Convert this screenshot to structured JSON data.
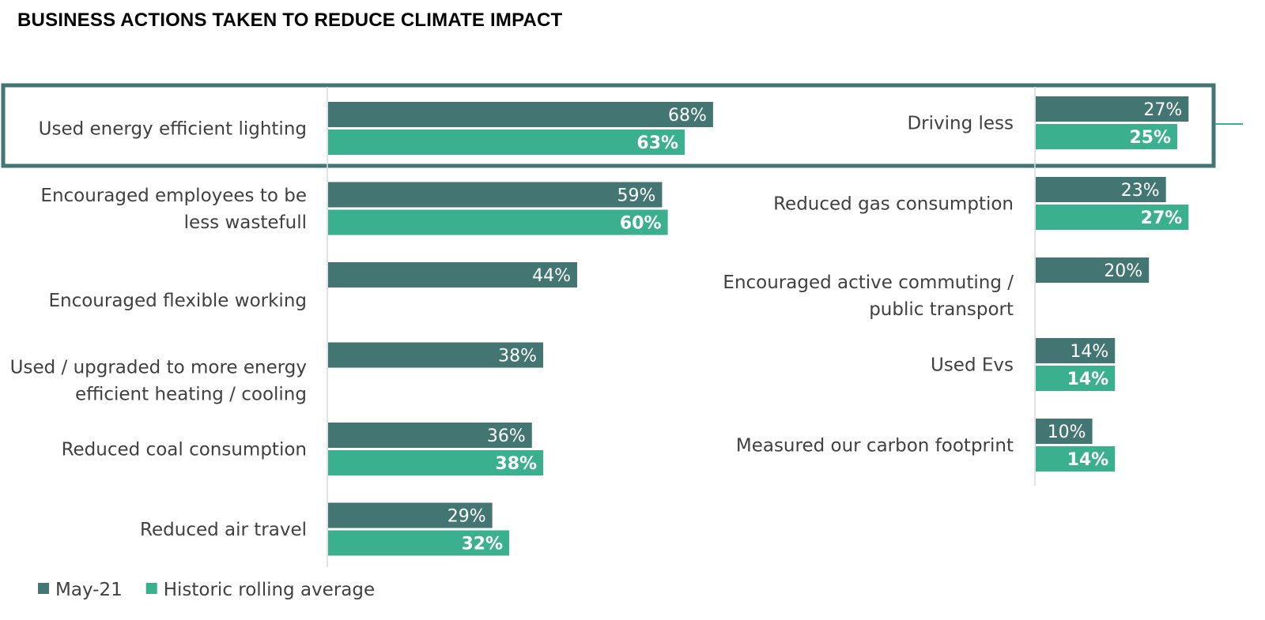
{
  "title": "BUSINESS ACTIONS TAKEN TO REDUCE CLIMATE IMPACT",
  "colors": {
    "series_a": "#437672",
    "series_b": "#3bb08f",
    "highlight": "#437672",
    "axis": "#d9d9d9",
    "label": "#404040"
  },
  "chart_data": [
    {
      "type": "bar",
      "orientation": "horizontal",
      "categories": [
        "Used energy efficient lighting",
        "Encouraged employees to be less wastefull",
        "Encouraged flexible working",
        "Used / upgraded to more energy efficient heating / cooling",
        "Reduced coal consumption",
        "Reduced air travel"
      ],
      "category_lines": [
        [
          "Used energy efficient lighting"
        ],
        [
          "Encouraged employees to be",
          "less wastefull"
        ],
        [
          "Encouraged flexible working"
        ],
        [
          "Used / upgraded to more energy",
          "efficient heating / cooling"
        ],
        [
          "Reduced coal consumption"
        ],
        [
          "Reduced air travel"
        ]
      ],
      "series": [
        {
          "name": "May-21",
          "values": [
            68,
            59,
            44,
            38,
            36,
            29
          ]
        },
        {
          "name": "Historic rolling average",
          "values": [
            63,
            60,
            null,
            null,
            38,
            32
          ]
        }
      ],
      "unit": "%"
    },
    {
      "type": "bar",
      "orientation": "horizontal",
      "categories": [
        "Driving less",
        "Reduced gas consumption",
        "Encouraged active commuting / public transport",
        "Used Evs",
        "Measured our carbon footprint"
      ],
      "category_lines": [
        [
          "Driving less"
        ],
        [
          "Reduced gas consumption"
        ],
        [
          "Encouraged active commuting /",
          "public transport"
        ],
        [
          "Used Evs"
        ],
        [
          "Measured our carbon footprint"
        ]
      ],
      "series": [
        {
          "name": "May-21",
          "values": [
            27,
            23,
            20,
            14,
            10
          ]
        },
        {
          "name": "Historic rolling average",
          "values": [
            25,
            27,
            null,
            14,
            14
          ]
        }
      ],
      "unit": "%"
    }
  ],
  "legend": [
    {
      "label": "May-21",
      "color": "#437672"
    },
    {
      "label": "Historic rolling average",
      "color": "#3bb08f"
    }
  ]
}
